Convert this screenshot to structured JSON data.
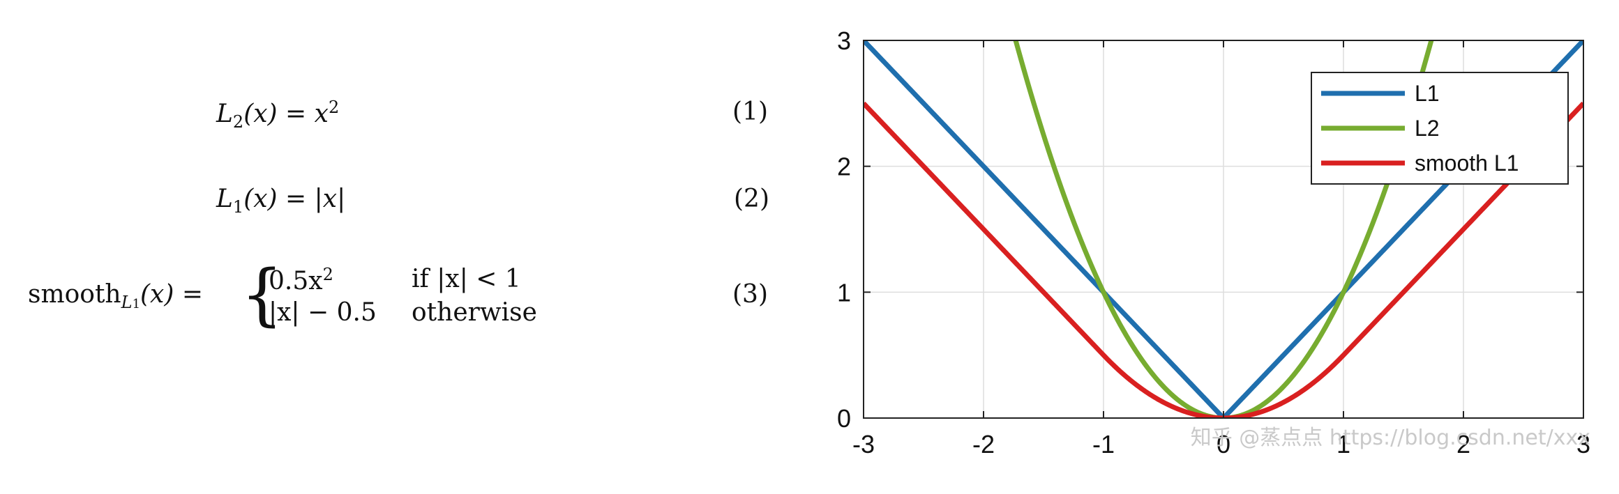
{
  "equations": {
    "eq1": {
      "lhs": "L",
      "lhs_sub": "2",
      "arg": "(x) = x",
      "sup": "2",
      "number": "(1)"
    },
    "eq2": {
      "lhs": "L",
      "lhs_sub": "1",
      "arg": "(x) = |x|",
      "number": "(2)"
    },
    "eq3": {
      "lhs": "smooth",
      "lhs_sub": "L",
      "lhs_subsub": "1",
      "arg": "(x) =",
      "case1_expr": "0.5x",
      "case1_sup": "2",
      "case1_cond": "if |x| < 1",
      "case2_expr": "|x| − 0.5",
      "case2_cond": "otherwise",
      "number": "(3)"
    }
  },
  "chart_data": {
    "type": "line",
    "xlim": [
      -3,
      3
    ],
    "ylim": [
      0,
      3
    ],
    "xticks": [
      -3,
      -2,
      -1,
      0,
      1,
      2,
      3
    ],
    "yticks": [
      0,
      1,
      2,
      3
    ],
    "xtick_labels": [
      "-3",
      "-2",
      "-1",
      "0",
      "1",
      "2",
      "3"
    ],
    "ytick_labels": [
      "0",
      "1",
      "2",
      "3"
    ],
    "grid": true,
    "legend_position": "top-right",
    "series": [
      {
        "name": "L1",
        "color": "#1f6fae",
        "formula": "|x|",
        "x": [
          -3,
          0,
          3
        ],
        "y": [
          3,
          0,
          3
        ]
      },
      {
        "name": "L2",
        "color": "#77ac30",
        "formula": "x^2",
        "x": [
          -1.732,
          -1.5,
          -1,
          -0.5,
          0,
          0.5,
          1,
          1.5,
          1.732
        ],
        "y": [
          3,
          2.25,
          1,
          0.25,
          0,
          0.25,
          1,
          2.25,
          3
        ]
      },
      {
        "name": "smooth L1",
        "color": "#d92020",
        "formula": "0.5x^2 if |x|<1 else |x|-0.5",
        "x": [
          -3,
          -1,
          -0.75,
          -0.5,
          -0.25,
          0,
          0.25,
          0.5,
          0.75,
          1,
          3
        ],
        "y": [
          2.5,
          0.5,
          0.28,
          0.125,
          0.031,
          0,
          0.031,
          0.125,
          0.28,
          0.5,
          2.5
        ]
      }
    ],
    "watermark": "知乎 @蒸点点  https://blog.csdn.net/xxx"
  }
}
